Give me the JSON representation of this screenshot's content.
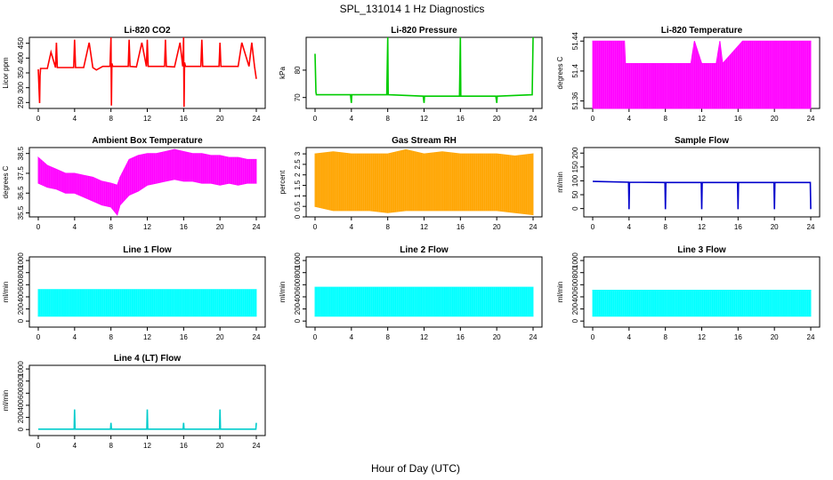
{
  "figure": {
    "title": "SPL_131014  1 Hz Diagnostics",
    "xlabel": "Hour of Day (UTC)"
  },
  "chart_data": [
    {
      "id": "co2",
      "type": "line",
      "title": "Li-820 CO2",
      "ylabel": "Licor ppm",
      "color": "#ff0000",
      "xlim": [
        0,
        24
      ],
      "ylim": [
        230,
        470
      ],
      "yticks": [
        250,
        300,
        350,
        400,
        450
      ],
      "xticks": [
        0,
        4,
        8,
        12,
        16,
        20,
        24
      ],
      "series": [
        {
          "x": [
            0,
            0.15,
            0.2,
            0.25,
            1,
            1.4,
            1.9,
            2,
            2.1,
            3.1,
            3.9,
            4,
            4.1,
            5,
            5.6,
            6,
            6.4,
            7.1,
            7.9,
            8,
            8.05,
            8.1,
            8.2,
            9.1,
            9.9,
            10,
            10.1,
            10.8,
            11.4,
            11.9,
            12,
            12.1,
            13.1,
            13.9,
            14,
            14.1,
            15,
            15.6,
            15.9,
            16,
            16.05,
            16.1,
            16.2,
            17.1,
            17.9,
            18,
            18.1,
            19.1,
            19.9,
            20,
            20.1,
            21.1,
            22,
            22.4,
            23.2,
            23.5,
            23.8,
            24
          ],
          "y": [
            362,
            248,
            340,
            365,
            365,
            420,
            368,
            452,
            368,
            368,
            368,
            462,
            368,
            368,
            452,
            368,
            360,
            372,
            372,
            470,
            240,
            382,
            372,
            372,
            372,
            462,
            372,
            370,
            452,
            372,
            462,
            372,
            372,
            372,
            462,
            372,
            370,
            452,
            372,
            470,
            235,
            385,
            372,
            372,
            372,
            462,
            372,
            372,
            372,
            452,
            372,
            372,
            372,
            452,
            372,
            452,
            372,
            330
          ]
        }
      ]
    },
    {
      "id": "pressure",
      "type": "line",
      "title": "Li-820 Pressure",
      "ylabel": "kPa",
      "color": "#00cc00",
      "xlim": [
        0,
        24
      ],
      "ylim": [
        66,
        92
      ],
      "yticks": [
        70,
        80
      ],
      "xticks": [
        0,
        4,
        8,
        12,
        16,
        20,
        24
      ],
      "series": [
        {
          "x": [
            0,
            0.1,
            0.15,
            0.3,
            3.9,
            4,
            4.05,
            4.1,
            7.9,
            8,
            8.05,
            8.1,
            11.9,
            12,
            12.05,
            12.1,
            15.9,
            16,
            16.05,
            16.1,
            19.9,
            20,
            20.05,
            20.1,
            23.9,
            24
          ],
          "y": [
            86,
            72,
            71,
            71,
            71,
            68,
            71,
            71,
            71,
            92,
            71,
            71,
            70.5,
            68,
            70.5,
            70.5,
            70.5,
            92,
            70.5,
            70.5,
            70.5,
            68,
            70.5,
            70.5,
            71,
            92
          ]
        }
      ]
    },
    {
      "id": "temperature",
      "type": "area",
      "title": "Li-820 Temperature",
      "ylabel": "degrees C",
      "color": "#ff00ff",
      "xlim": [
        0,
        24
      ],
      "ylim": [
        51.35,
        51.445
      ],
      "yticks": [
        51.36,
        51.4,
        51.44
      ],
      "xticks": [
        0,
        4,
        8,
        12,
        16,
        20,
        24
      ],
      "series": [
        {
          "x": [
            0,
            3.5,
            3.6,
            8.5,
            10.8,
            11.2,
            12,
            13.6,
            14,
            14.3,
            16.5,
            23.9,
            24
          ],
          "low": [
            51.35,
            51.35,
            51.35,
            51.35,
            51.35,
            51.35,
            51.35,
            51.35,
            51.35,
            51.35,
            51.35,
            51.35,
            51.35
          ],
          "high": [
            51.44,
            51.44,
            51.41,
            51.41,
            51.41,
            51.44,
            51.41,
            51.41,
            51.44,
            51.41,
            51.44,
            51.44,
            51.44
          ]
        }
      ]
    },
    {
      "id": "box_temp",
      "type": "area",
      "title": "Ambient Box Temperature",
      "ylabel": "degrees C",
      "color": "#ff00ff",
      "xlim": [
        0,
        24
      ],
      "ylim": [
        35.3,
        38.8
      ],
      "yticks": [
        35.5,
        36.5,
        37.5,
        38.5
      ],
      "xticks": [
        0,
        4,
        8,
        12,
        16,
        20,
        24
      ],
      "series": [
        {
          "x": [
            0,
            1,
            2,
            3,
            4,
            5,
            6,
            7,
            8,
            8.7,
            9,
            10,
            11,
            12,
            13,
            14,
            15,
            16,
            17,
            18,
            19,
            20,
            21,
            22,
            23,
            24
          ],
          "low": [
            37.0,
            36.8,
            36.7,
            36.5,
            36.5,
            36.3,
            36.1,
            35.9,
            35.8,
            35.4,
            35.9,
            36.4,
            36.6,
            36.9,
            37.0,
            37.1,
            37.2,
            37.1,
            37.1,
            37.0,
            37.0,
            36.9,
            37.0,
            36.9,
            37.0,
            37.0
          ],
          "high": [
            38.3,
            37.9,
            37.7,
            37.5,
            37.5,
            37.4,
            37.3,
            37.1,
            37.0,
            36.9,
            37.3,
            38.2,
            38.4,
            38.5,
            38.5,
            38.6,
            38.7,
            38.6,
            38.5,
            38.5,
            38.4,
            38.4,
            38.3,
            38.3,
            38.2,
            38.2
          ]
        }
      ]
    },
    {
      "id": "rh",
      "type": "area",
      "title": "Gas Stream RH",
      "ylabel": "percent",
      "color": "#ffa500",
      "xlim": [
        0,
        24
      ],
      "ylim": [
        0,
        3.3
      ],
      "yticks": [
        0.0,
        0.5,
        1.0,
        1.5,
        2.0,
        2.5,
        3.0
      ],
      "xticks": [
        0,
        4,
        8,
        12,
        16,
        20,
        24
      ],
      "series": [
        {
          "x": [
            0,
            2,
            4,
            6,
            8,
            10,
            12,
            14,
            16,
            18,
            20,
            22,
            24
          ],
          "low": [
            0.5,
            0.3,
            0.3,
            0.3,
            0.2,
            0.3,
            0.3,
            0.3,
            0.3,
            0.3,
            0.3,
            0.2,
            0.1
          ],
          "high": [
            3.0,
            3.1,
            3.0,
            3.0,
            3.0,
            3.2,
            3.0,
            3.1,
            3.0,
            3.0,
            3.0,
            2.9,
            3.0
          ]
        }
      ]
    },
    {
      "id": "sample_flow",
      "type": "line",
      "title": "Sample Flow",
      "ylabel": "ml/min",
      "color": "#0000cc",
      "xlim": [
        0,
        24
      ],
      "ylim": [
        -30,
        220
      ],
      "yticks": [
        0,
        50,
        100,
        150,
        200
      ],
      "xticks": [
        0,
        4,
        8,
        12,
        16,
        20,
        24
      ],
      "series": [
        {
          "x": [
            0,
            3.95,
            4,
            4.05,
            7.95,
            8,
            8.05,
            11.95,
            12,
            12.05,
            15.95,
            16,
            16.05,
            19.95,
            20,
            20.05,
            23.95,
            24
          ],
          "y": [
            98,
            95,
            -2,
            95,
            94,
            -2,
            94,
            94,
            -2,
            94,
            94,
            -2,
            94,
            94,
            -2,
            94,
            94,
            -2
          ]
        }
      ]
    },
    {
      "id": "line1",
      "type": "area",
      "title": "Line 1 Flow",
      "ylabel": "ml/min",
      "color": "#00ffff",
      "xlim": [
        0,
        24
      ],
      "ylim": [
        -100,
        1060
      ],
      "yticks": [
        0,
        200,
        400,
        600,
        800,
        1000
      ],
      "xticks": [
        0,
        4,
        8,
        12,
        16,
        20,
        24
      ],
      "series": [
        {
          "x": [
            0,
            24
          ],
          "low": [
            80,
            80
          ],
          "high": [
            520,
            520
          ]
        }
      ]
    },
    {
      "id": "line2",
      "type": "area",
      "title": "Line 2 Flow",
      "ylabel": "ml/min",
      "color": "#00ffff",
      "xlim": [
        0,
        24
      ],
      "ylim": [
        -100,
        1060
      ],
      "yticks": [
        0,
        200,
        400,
        600,
        800,
        1000
      ],
      "xticks": [
        0,
        4,
        8,
        12,
        16,
        20,
        24
      ],
      "series": [
        {
          "x": [
            0,
            24
          ],
          "low": [
            80,
            80
          ],
          "high": [
            560,
            560
          ]
        }
      ]
    },
    {
      "id": "line3",
      "type": "area",
      "title": "Line 3 Flow",
      "ylabel": "ml/min",
      "color": "#00ffff",
      "xlim": [
        0,
        24
      ],
      "ylim": [
        -100,
        1060
      ],
      "yticks": [
        0,
        200,
        400,
        600,
        800,
        1000
      ],
      "xticks": [
        0,
        4,
        8,
        12,
        16,
        20,
        24
      ],
      "series": [
        {
          "x": [
            0,
            24
          ],
          "low": [
            80,
            80
          ],
          "high": [
            510,
            510
          ]
        }
      ]
    },
    {
      "id": "line4",
      "type": "line",
      "title": "Line 4 (LT) Flow",
      "ylabel": "ml/min",
      "color": "#00cccc",
      "xlim": [
        0,
        24
      ],
      "ylim": [
        -100,
        1060
      ],
      "yticks": [
        0,
        200,
        400,
        600,
        800,
        1000
      ],
      "xticks": [
        0,
        4,
        8,
        12,
        16,
        20,
        24
      ],
      "series": [
        {
          "x": [
            0,
            3.95,
            4,
            4.05,
            7.95,
            8,
            8.05,
            11.95,
            12,
            12.05,
            15.95,
            16,
            16.05,
            19.95,
            20,
            20.05,
            23.95,
            24
          ],
          "y": [
            5,
            5,
            330,
            5,
            5,
            110,
            5,
            5,
            330,
            5,
            5,
            110,
            5,
            5,
            330,
            5,
            5,
            110
          ]
        }
      ]
    }
  ]
}
